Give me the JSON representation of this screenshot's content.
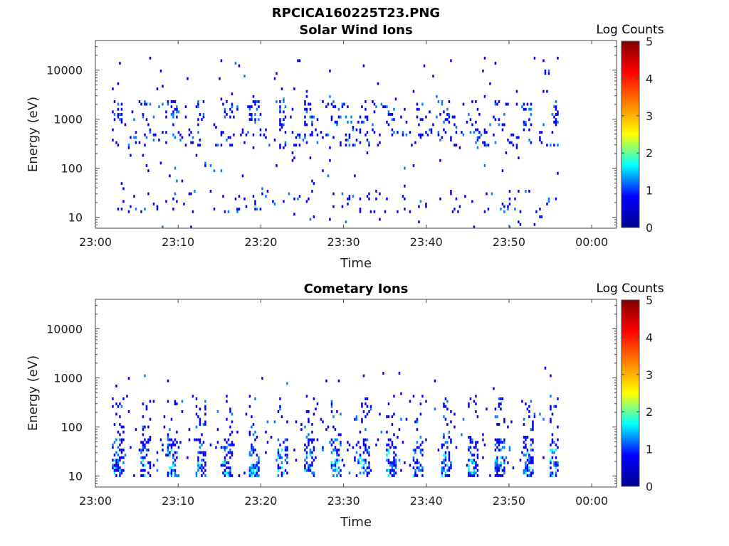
{
  "figure_title": "RPCICA160225T23.PNG",
  "colorbar_label": "Log Counts",
  "colorbar_ticks": [
    "0",
    "1",
    "2",
    "3",
    "4",
    "5"
  ],
  "colormap": [
    "#00008f",
    "#0000ff",
    "#00ffff",
    "#ffff00",
    "#ff8000",
    "#ff0000",
    "#800000"
  ],
  "chart_data": [
    {
      "type": "heatmap",
      "title": "Solar Wind Ions",
      "xlabel": "Time",
      "ylabel": "Energy (eV)",
      "xlim": [
        "23:00",
        "00:03"
      ],
      "ylim": [
        6,
        40000
      ],
      "yscale": "log",
      "x_ticks": [
        "23:00",
        "23:10",
        "23:20",
        "23:30",
        "23:40",
        "23:50",
        "00:00"
      ],
      "y_ticks": [
        "10",
        "100",
        "1000",
        "10000"
      ],
      "clim": [
        0,
        5
      ],
      "data_extent": [
        "23:02",
        "23:56"
      ]
    },
    {
      "type": "heatmap",
      "title": "Cometary Ions",
      "xlabel": "Time",
      "ylabel": "Energy (eV)",
      "xlim": [
        "23:00",
        "00:03"
      ],
      "ylim": [
        6,
        40000
      ],
      "yscale": "log",
      "x_ticks": [
        "23:00",
        "23:10",
        "23:20",
        "23:30",
        "23:40",
        "23:50",
        "00:00"
      ],
      "y_ticks": [
        "10",
        "100",
        "1000",
        "10000"
      ],
      "clim": [
        0,
        5
      ],
      "data_extent": [
        "23:02",
        "23:56"
      ]
    }
  ]
}
